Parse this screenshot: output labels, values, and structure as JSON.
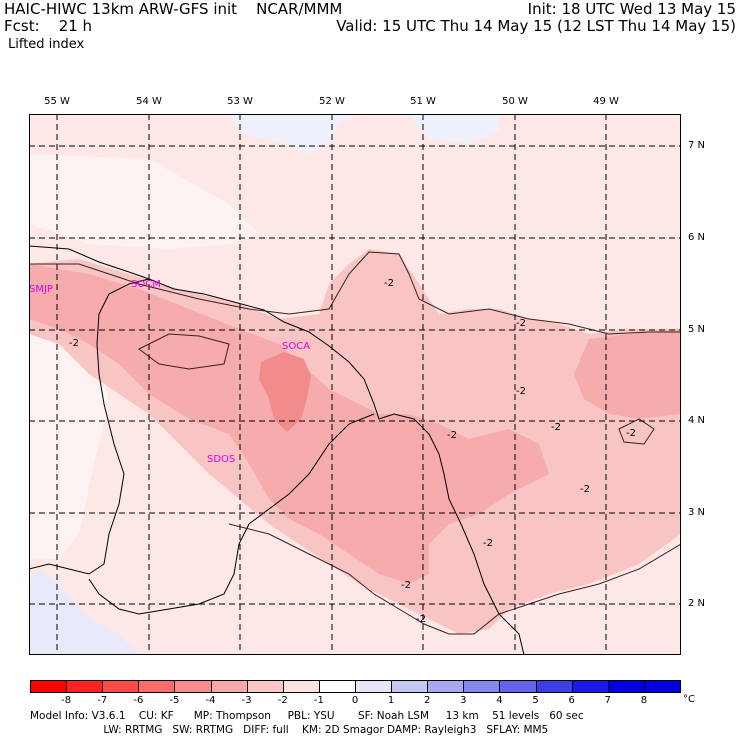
{
  "header": {
    "left_line1": "HAIC-HIWC 13km ARW-GFS init    NCAR/MMM",
    "left_line2": "Fcst:    21 h",
    "field": "Lifted index",
    "right_line1": "Init: 18 UTC Wed 13 May 15",
    "right_line2": "Valid: 15 UTC Thu 14 May 15 (12 LST Thu 14 May 15)"
  },
  "map": {
    "lon_labels": [
      "55 W",
      "54 W",
      "53 W",
      "52 W",
      "51 W",
      "50 W",
      "49 W"
    ],
    "lat_labels": [
      "7 N",
      "6 N",
      "5 N",
      "4 N",
      "3 N",
      "2 N"
    ],
    "stations": [
      "SMJP",
      "SOCM",
      "SOCA",
      "SDOS"
    ],
    "contour_label": "-2"
  },
  "colorbar": {
    "ticks": [
      "-8",
      "-7",
      "-6",
      "-5",
      "-4",
      "-3",
      "-2",
      "-1",
      "0",
      "1",
      "2",
      "3",
      "4",
      "5",
      "6",
      "7",
      "8"
    ],
    "unit": "°C",
    "colors": [
      "#ff0000",
      "#ff2222",
      "#ff4a4a",
      "#ff6a6a",
      "#fb8c8c",
      "#f8a8a8",
      "#fbc6c6",
      "#fde2e2",
      "#ffffff",
      "#e6e6fb",
      "#c6c6f5",
      "#a8a8f1",
      "#8686ed",
      "#6464ea",
      "#3e3ee8",
      "#1a1ae6",
      "#0000e0"
    ]
  },
  "footer": {
    "line1": "Model Info: V3.6.1    CU: KF      MP: Thompson     PBL: YSU       SF: Noah LSM     13 km    51 levels   60 sec",
    "line2": "                      LW: RRTMG   SW: RRTMG   DIFF: full    KM: 2D Smagor DAMP: Rayleigh3   SFLAY: MM5"
  }
}
